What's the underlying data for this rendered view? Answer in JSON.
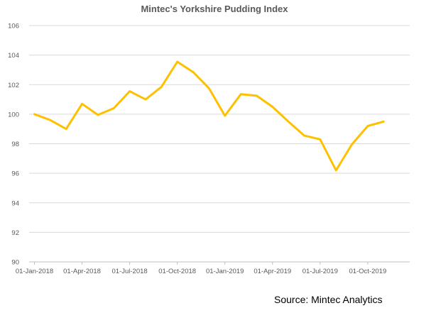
{
  "chart_data": {
    "type": "line",
    "title": "Mintec's Yorkshire Pudding Index",
    "xlabel": "",
    "ylabel": "",
    "ylim": [
      90,
      106
    ],
    "yticks": [
      90,
      92,
      94,
      96,
      98,
      100,
      102,
      104,
      106
    ],
    "x_tick_labels": [
      "01-Jan-2018",
      "01-Apr-2018",
      "01-Jul-2018",
      "01-Oct-2018",
      "01-Jan-2019",
      "01-Apr-2019",
      "01-Jul-2019",
      "01-Oct-2019"
    ],
    "grid": true,
    "legend": "none",
    "series": [
      {
        "color": "#FFC000",
        "x": [
          "2018-01",
          "2018-02",
          "2018-03",
          "2018-04",
          "2018-05",
          "2018-06",
          "2018-07",
          "2018-08",
          "2018-09",
          "2018-10",
          "2018-11",
          "2018-12",
          "2019-01",
          "2019-02",
          "2019-03",
          "2019-04",
          "2019-05",
          "2019-06",
          "2019-07",
          "2019-08",
          "2019-09",
          "2019-10",
          "2019-11"
        ],
        "values": [
          100.0,
          99.6,
          99.0,
          100.7,
          99.95,
          100.4,
          101.55,
          101.0,
          101.85,
          103.55,
          102.85,
          101.75,
          99.9,
          101.35,
          101.25,
          100.5,
          99.5,
          98.55,
          98.3,
          96.2,
          97.95,
          99.2,
          99.5
        ]
      }
    ]
  },
  "source": "Source: Mintec Analytics"
}
